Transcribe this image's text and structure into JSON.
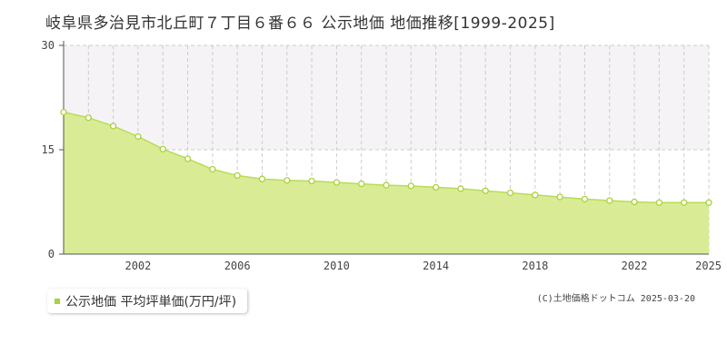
{
  "title": "岐阜県多治見市北丘町７丁目６番６６ 公示地価 地価推移[1999-2025]",
  "legend": {
    "label": "公示地価 平均坪単価(万円/坪)"
  },
  "copyright": "(C)土地価格ドットコム 2025-03-20",
  "colors": {
    "fill": "#d9ec95",
    "line": "#b9dc55",
    "marker_stroke": "#a8d33a",
    "ref_band": "#f6f3f6",
    "grid": "#cccccc"
  },
  "chart_data": {
    "type": "area",
    "x": [
      1999,
      2000,
      2001,
      2002,
      2003,
      2004,
      2005,
      2006,
      2007,
      2008,
      2009,
      2010,
      2011,
      2012,
      2013,
      2014,
      2015,
      2016,
      2017,
      2018,
      2019,
      2020,
      2021,
      2022,
      2023,
      2024,
      2025
    ],
    "series": [
      {
        "name": "公示地価 平均坪単価(万円/坪)",
        "values": [
          20.4,
          19.6,
          18.4,
          16.9,
          15.1,
          13.7,
          12.2,
          11.3,
          10.8,
          10.6,
          10.5,
          10.3,
          10.1,
          9.9,
          9.8,
          9.6,
          9.4,
          9.1,
          8.8,
          8.5,
          8.2,
          7.9,
          7.7,
          7.5,
          7.4,
          7.4,
          7.4
        ]
      }
    ],
    "xlim": [
      1999,
      2025
    ],
    "ylim": [
      0,
      30
    ],
    "yticks": [
      "0",
      "15",
      "30"
    ],
    "xticks": [
      "2002",
      "2006",
      "2010",
      "2014",
      "2018",
      "2022",
      "2025"
    ],
    "grid": true,
    "reference_line": 15
  }
}
